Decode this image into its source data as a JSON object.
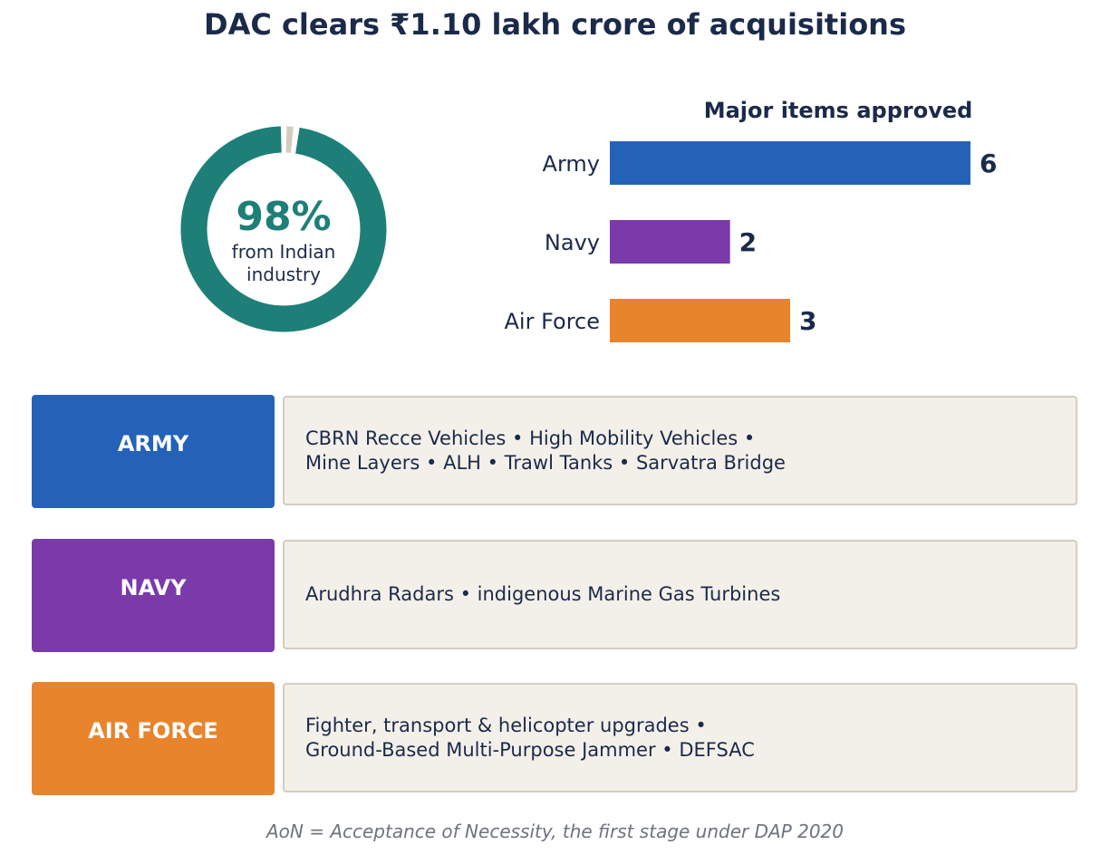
{
  "title": "DAC clears ₹1.10 lakh crore of acquisitions",
  "donut": {
    "percent": 98,
    "percent_label": "98%",
    "caption": "from Indian\nindustry",
    "color_main": "#1e7f78",
    "color_rest": "#d3cdc1"
  },
  "chart_data": {
    "type": "bar",
    "orientation": "horizontal",
    "title": "Major items approved",
    "categories": [
      "Army",
      "Navy",
      "Air Force"
    ],
    "values": [
      6,
      2,
      3
    ],
    "colors": [
      "#2462b8",
      "#7b39aa",
      "#e8842b"
    ],
    "xlim": [
      0,
      6
    ],
    "grid": false
  },
  "rows": [
    {
      "label": "ARMY",
      "color": "#2462b8",
      "text": "CBRN Recce Vehicles • High Mobility Vehicles •\nMine Layers • ALH • Trawl Tanks • Sarvatra Bridge"
    },
    {
      "label": "NAVY",
      "color": "#7b39aa",
      "text": "Arudhra Radars • indigenous Marine Gas Turbines"
    },
    {
      "label": "AIR FORCE",
      "color": "#e8842b",
      "text": "Fighter, transport & helicopter upgrades •\nGround-Based Multi-Purpose Jammer • DEFSAC"
    }
  ],
  "footnote": "AoN = Acceptance of Necessity, the first stage under DAP 2020"
}
